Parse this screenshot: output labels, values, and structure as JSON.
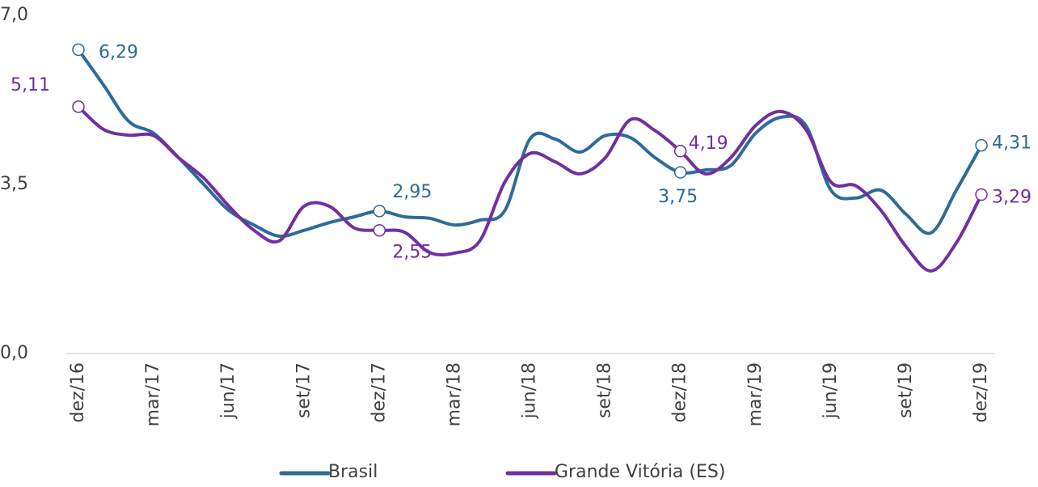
{
  "chart_data": {
    "type": "line",
    "categories": [
      "dez/16",
      null,
      null,
      "mar/17",
      null,
      null,
      "jun/17",
      null,
      null,
      "set/17",
      null,
      null,
      "dez/17",
      null,
      null,
      "mar/18",
      null,
      null,
      "jun/18",
      null,
      null,
      "set/18",
      null,
      null,
      "dez/18",
      null,
      null,
      "mar/19",
      null,
      null,
      "jun/19",
      null,
      null,
      "set/19",
      null,
      null,
      "dez/19"
    ],
    "series": [
      {
        "name": "Brasil",
        "color": "#2e6b98",
        "values": [
          6.29,
          5.56,
          4.81,
          4.56,
          4.05,
          3.5,
          2.96,
          2.66,
          2.43,
          2.55,
          2.71,
          2.83,
          2.95,
          2.83,
          2.8,
          2.66,
          2.76,
          2.96,
          4.44,
          4.44,
          4.17,
          4.51,
          4.47,
          4.05,
          3.75,
          3.8,
          3.89,
          4.56,
          4.89,
          4.72,
          3.38,
          3.22,
          3.38,
          2.88,
          2.5,
          3.38,
          4.31
        ],
        "value_labels": [
          "6,29",
          null,
          null,
          null,
          null,
          null,
          null,
          null,
          null,
          null,
          null,
          null,
          "2,95",
          null,
          null,
          null,
          null,
          null,
          null,
          null,
          null,
          null,
          null,
          null,
          "3,75",
          null,
          null,
          null,
          null,
          null,
          null,
          null,
          null,
          null,
          null,
          null,
          "4,31"
        ]
      },
      {
        "name": "Grande Vitória (ES)",
        "color": "#7030a0",
        "values": [
          5.11,
          4.64,
          4.52,
          4.51,
          4.05,
          3.63,
          3.05,
          2.55,
          2.33,
          3.05,
          3.05,
          2.6,
          2.55,
          2.51,
          2.09,
          2.08,
          2.33,
          3.55,
          4.14,
          3.97,
          3.72,
          4.05,
          4.84,
          4.61,
          4.19,
          3.72,
          4.05,
          4.72,
          5.01,
          4.64,
          3.55,
          3.47,
          2.96,
          2.21,
          1.71,
          2.29,
          3.29
        ],
        "value_labels": [
          "5,11",
          null,
          null,
          null,
          null,
          null,
          null,
          null,
          null,
          null,
          null,
          null,
          "2,55",
          null,
          null,
          null,
          null,
          null,
          null,
          null,
          null,
          null,
          null,
          null,
          "4,19",
          null,
          null,
          null,
          null,
          null,
          null,
          null,
          null,
          null,
          null,
          null,
          "3,29"
        ]
      }
    ],
    "ylim": [
      0,
      7
    ],
    "yticks": [
      {
        "value": 0,
        "label": "0,0"
      },
      {
        "value": 3.5,
        "label": "3,5"
      },
      {
        "value": 7,
        "label": "7,0"
      }
    ],
    "grid": false,
    "legend": "bottom"
  }
}
